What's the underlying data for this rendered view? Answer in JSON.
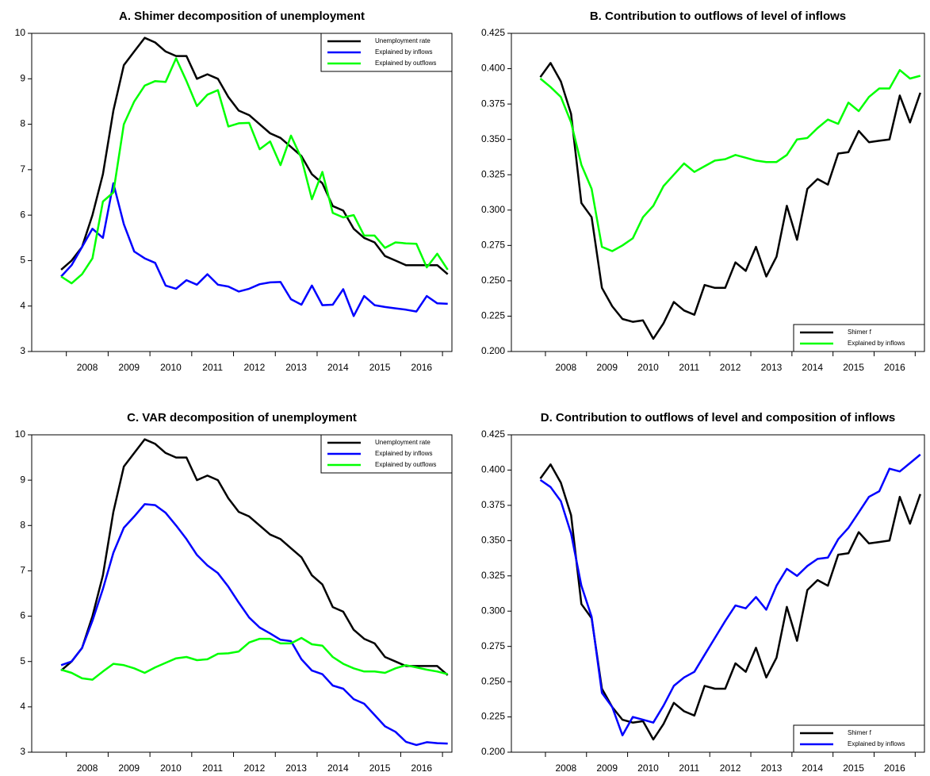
{
  "chart_data": [
    {
      "type": "line",
      "title": "A. Shimer decomposition of unemployment",
      "categories": [
        null,
        null,
        "2008",
        null,
        null,
        null,
        "2009",
        null,
        null,
        null,
        "2010",
        null,
        null,
        null,
        "2011",
        null,
        null,
        null,
        "2012",
        null,
        null,
        null,
        "2013",
        null,
        null,
        null,
        "2014",
        null,
        null,
        null,
        "2015",
        null,
        null,
        null,
        "2016",
        null,
        null,
        null
      ],
      "series": [
        {
          "name": "Unemployment rate",
          "color": "#000000",
          "values": [
            4.8,
            5.0,
            5.3,
            6.0,
            6.9,
            8.3,
            9.3,
            9.6,
            9.9,
            9.8,
            9.6,
            9.5,
            9.5,
            9.0,
            9.1,
            9.0,
            8.6,
            8.3,
            8.2,
            8.0,
            7.8,
            7.7,
            7.5,
            7.3,
            6.9,
            6.7,
            6.2,
            6.1,
            5.7,
            5.5,
            5.4,
            5.1,
            5.0,
            4.9,
            4.9,
            4.9,
            4.9,
            4.7
          ]
        },
        {
          "name": "Explained by inflows",
          "color": "#0000ff",
          "values": [
            4.65,
            4.9,
            5.3,
            5.7,
            5.5,
            6.7,
            5.8,
            5.2,
            5.05,
            4.95,
            4.45,
            4.38,
            4.57,
            4.47,
            4.7,
            4.47,
            4.43,
            4.32,
            4.38,
            4.48,
            4.52,
            4.53,
            4.15,
            4.03,
            4.45,
            4.02,
            4.03,
            4.37,
            3.78,
            4.22,
            4.02,
            3.98,
            3.95,
            3.92,
            3.88,
            4.22,
            4.06,
            4.05
          ]
        },
        {
          "name": "Explained by outflows",
          "color": "#00ff00",
          "values": [
            4.65,
            4.5,
            4.7,
            5.05,
            6.3,
            6.5,
            8.0,
            8.5,
            8.85,
            8.95,
            8.93,
            9.45,
            8.95,
            8.4,
            8.65,
            8.75,
            7.95,
            8.02,
            8.03,
            7.45,
            7.62,
            7.1,
            7.75,
            7.25,
            6.35,
            6.95,
            6.05,
            5.95,
            6.0,
            5.55,
            5.55,
            5.28,
            5.4,
            5.38,
            5.37,
            4.85,
            5.15,
            4.8
          ]
        }
      ],
      "ylim": [
        3,
        10
      ],
      "yticks": [
        3,
        4,
        5,
        6,
        7,
        8,
        9,
        10
      ],
      "legend": "upper right"
    },
    {
      "type": "line",
      "title": "B. Contribution to outflows of level of inflows",
      "categories": [
        null,
        null,
        "2008",
        null,
        null,
        null,
        "2009",
        null,
        null,
        null,
        "2010",
        null,
        null,
        null,
        "2011",
        null,
        null,
        null,
        "2012",
        null,
        null,
        null,
        "2013",
        null,
        null,
        null,
        "2014",
        null,
        null,
        null,
        "2015",
        null,
        null,
        null,
        "2016",
        null,
        null,
        null
      ],
      "series": [
        {
          "name": "Shimer f",
          "color": "#000000",
          "values": [
            0.394,
            0.404,
            0.391,
            0.368,
            0.305,
            0.295,
            0.245,
            0.232,
            0.223,
            0.221,
            0.222,
            0.209,
            0.22,
            0.235,
            0.229,
            0.226,
            0.247,
            0.245,
            0.245,
            0.263,
            0.257,
            0.274,
            0.253,
            0.267,
            0.303,
            0.279,
            0.315,
            0.322,
            0.318,
            0.34,
            0.341,
            0.356,
            0.348,
            0.349,
            0.35,
            0.381,
            0.362,
            0.383
          ]
        },
        {
          "name": "Explained by inflows",
          "color": "#00ff00",
          "values": [
            0.393,
            0.387,
            0.38,
            0.362,
            0.332,
            0.315,
            0.274,
            0.271,
            0.275,
            0.28,
            0.295,
            0.303,
            0.317,
            0.325,
            0.333,
            0.327,
            0.331,
            0.335,
            0.336,
            0.339,
            0.337,
            0.335,
            0.334,
            0.334,
            0.339,
            0.35,
            0.351,
            0.358,
            0.364,
            0.361,
            0.376,
            0.37,
            0.38,
            0.386,
            0.386,
            0.399,
            0.393,
            0.395
          ]
        }
      ],
      "ylim": [
        0.2,
        0.425
      ],
      "yticks": [
        {
          "value": 0.2,
          "label": "0.200"
        },
        0.225,
        {
          "value": 0.25,
          "label": "0.250"
        },
        0.275,
        {
          "value": 0.3,
          "label": "0.300"
        },
        0.325,
        {
          "value": 0.35,
          "label": "0.350"
        },
        0.375,
        {
          "value": 0.4,
          "label": "0.400"
        },
        0.425
      ],
      "legend": "lower right"
    },
    {
      "type": "line",
      "title": "C. VAR decomposition of unemployment",
      "categories": [
        null,
        null,
        "2008",
        null,
        null,
        null,
        "2009",
        null,
        null,
        null,
        "2010",
        null,
        null,
        null,
        "2011",
        null,
        null,
        null,
        "2012",
        null,
        null,
        null,
        "2013",
        null,
        null,
        null,
        "2014",
        null,
        null,
        null,
        "2015",
        null,
        null,
        null,
        "2016",
        null,
        null,
        null
      ],
      "series": [
        {
          "name": "Unemployment rate",
          "color": "#000000",
          "values": [
            4.8,
            5.0,
            5.3,
            6.0,
            6.9,
            8.3,
            9.3,
            9.6,
            9.9,
            9.8,
            9.6,
            9.5,
            9.5,
            9.0,
            9.1,
            9.0,
            8.6,
            8.3,
            8.2,
            8.0,
            7.8,
            7.7,
            7.5,
            7.3,
            6.9,
            6.7,
            6.2,
            6.1,
            5.7,
            5.5,
            5.4,
            5.1,
            5.0,
            4.9,
            4.9,
            4.9,
            4.9,
            4.7
          ]
        },
        {
          "name": "Explained by inflows",
          "color": "#0000ff",
          "values": [
            4.92,
            5.0,
            5.3,
            5.9,
            6.6,
            7.4,
            7.95,
            8.2,
            8.47,
            8.45,
            8.28,
            8.0,
            7.7,
            7.35,
            7.12,
            6.95,
            6.65,
            6.3,
            5.97,
            5.75,
            5.62,
            5.48,
            5.45,
            5.05,
            4.8,
            4.72,
            4.47,
            4.4,
            4.17,
            4.07,
            3.82,
            3.57,
            3.45,
            3.23,
            3.16,
            3.22,
            3.2,
            3.19
          ]
        },
        {
          "name": "Explained by outflows",
          "color": "#00ff00",
          "values": [
            4.82,
            4.75,
            4.63,
            4.6,
            4.78,
            4.95,
            4.92,
            4.85,
            4.75,
            4.87,
            4.97,
            5.07,
            5.1,
            5.03,
            5.05,
            5.17,
            5.18,
            5.22,
            5.42,
            5.5,
            5.5,
            5.4,
            5.4,
            5.52,
            5.38,
            5.35,
            5.1,
            4.95,
            4.85,
            4.78,
            4.78,
            4.75,
            4.85,
            4.92,
            4.87,
            4.82,
            4.78,
            4.72
          ]
        }
      ],
      "ylim": [
        3,
        10
      ],
      "yticks": [
        3,
        4,
        5,
        6,
        7,
        8,
        9,
        10
      ],
      "legend": "upper right"
    },
    {
      "type": "line",
      "title": "D. Contribution to outflows of level and composition of inflows",
      "categories": [
        null,
        null,
        "2008",
        null,
        null,
        null,
        "2009",
        null,
        null,
        null,
        "2010",
        null,
        null,
        null,
        "2011",
        null,
        null,
        null,
        "2012",
        null,
        null,
        null,
        "2013",
        null,
        null,
        null,
        "2014",
        null,
        null,
        null,
        "2015",
        null,
        null,
        null,
        "2016",
        null,
        null,
        null
      ],
      "series": [
        {
          "name": "Shimer f",
          "color": "#000000",
          "values": [
            0.394,
            0.404,
            0.391,
            0.368,
            0.305,
            0.295,
            0.245,
            0.232,
            0.223,
            0.221,
            0.222,
            0.209,
            0.22,
            0.235,
            0.229,
            0.226,
            0.247,
            0.245,
            0.245,
            0.263,
            0.257,
            0.274,
            0.253,
            0.267,
            0.303,
            0.279,
            0.315,
            0.322,
            0.318,
            0.34,
            0.341,
            0.356,
            0.348,
            0.349,
            0.35,
            0.381,
            0.362,
            0.383
          ]
        },
        {
          "name": "Explained by inflows",
          "color": "#0000ff",
          "values": [
            0.393,
            0.388,
            0.378,
            0.355,
            0.318,
            0.296,
            0.242,
            0.232,
            0.212,
            0.225,
            0.223,
            0.221,
            0.233,
            0.247,
            0.253,
            0.257,
            0.269,
            0.281,
            0.293,
            0.304,
            0.302,
            0.31,
            0.301,
            0.318,
            0.33,
            0.325,
            0.332,
            0.337,
            0.338,
            0.351,
            0.359,
            0.37,
            0.381,
            0.385,
            0.401,
            0.399,
            0.405,
            0.411
          ]
        }
      ],
      "ylim": [
        0.2,
        0.425
      ],
      "yticks": [
        {
          "value": 0.2,
          "label": "0.200"
        },
        0.225,
        {
          "value": 0.25,
          "label": "0.250"
        },
        0.275,
        {
          "value": 0.3,
          "label": "0.300"
        },
        0.325,
        {
          "value": 0.35,
          "label": "0.350"
        },
        0.375,
        {
          "value": 0.4,
          "label": "0.400"
        },
        0.425
      ],
      "legend": "lower right"
    }
  ]
}
